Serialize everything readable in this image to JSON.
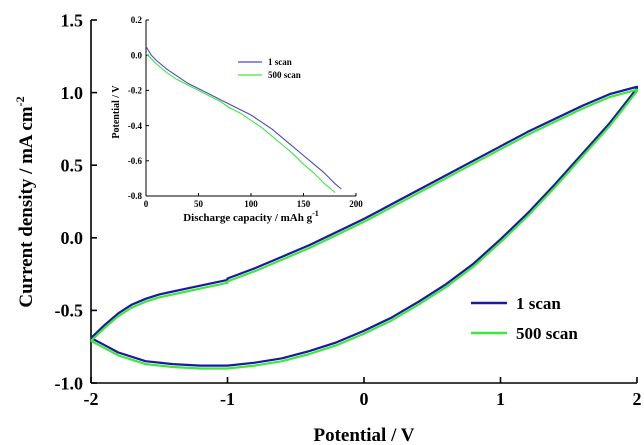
{
  "chart_data": [
    {
      "type": "line",
      "xlabel": "Potential / V",
      "ylabel_main": "Current density / mA cm",
      "ylabel_sup": "-2",
      "xlim": [
        -2,
        2
      ],
      "ylim": [
        -1.0,
        1.5
      ],
      "x_ticks": [
        "-2",
        "-1",
        "0",
        "1",
        "2"
      ],
      "y_ticks": [
        "-1.0",
        "-0.5",
        "0.0",
        "0.5",
        "1.0",
        "1.5"
      ],
      "legend_position": "bottom-right",
      "series": [
        {
          "name": "1 scan",
          "color": "#1a1aa0",
          "x": [
            -2.0,
            -1.9,
            -1.8,
            -1.7,
            -1.6,
            -1.5,
            -1.4,
            -1.3,
            -1.2,
            -1.1,
            -1.0,
            -1.0,
            -0.8,
            -0.6,
            -0.4,
            -0.2,
            0.0,
            0.2,
            0.4,
            0.6,
            0.8,
            1.0,
            1.2,
            1.4,
            1.6,
            1.8,
            2.0,
            2.0,
            1.9,
            1.8,
            1.6,
            1.4,
            1.2,
            1.0,
            0.8,
            0.6,
            0.4,
            0.2,
            0.0,
            -0.2,
            -0.4,
            -0.6,
            -0.8,
            -1.0,
            -1.2,
            -1.4,
            -1.6,
            -1.8,
            -1.9,
            -2.0
          ],
          "y": [
            -0.69,
            -0.6,
            -0.52,
            -0.46,
            -0.42,
            -0.39,
            -0.37,
            -0.35,
            -0.33,
            -0.31,
            -0.29,
            -0.28,
            -0.21,
            -0.13,
            -0.05,
            0.04,
            0.13,
            0.23,
            0.33,
            0.43,
            0.53,
            0.63,
            0.73,
            0.82,
            0.91,
            0.99,
            1.04,
            1.03,
            0.91,
            0.79,
            0.58,
            0.37,
            0.17,
            -0.01,
            -0.18,
            -0.32,
            -0.44,
            -0.55,
            -0.64,
            -0.72,
            -0.78,
            -0.83,
            -0.86,
            -0.88,
            -0.88,
            -0.87,
            -0.85,
            -0.79,
            -0.74,
            -0.69
          ]
        },
        {
          "name": "500 scan",
          "color": "#3ee83e",
          "x": [
            -2.0,
            -1.9,
            -1.8,
            -1.7,
            -1.6,
            -1.5,
            -1.4,
            -1.3,
            -1.2,
            -1.1,
            -1.0,
            -1.0,
            -0.8,
            -0.6,
            -0.4,
            -0.2,
            0.0,
            0.2,
            0.4,
            0.6,
            0.8,
            1.0,
            1.2,
            1.4,
            1.6,
            1.8,
            2.0,
            2.0,
            1.9,
            1.8,
            1.6,
            1.4,
            1.2,
            1.0,
            0.8,
            0.6,
            0.4,
            0.2,
            0.0,
            -0.2,
            -0.4,
            -0.6,
            -0.8,
            -1.0,
            -1.2,
            -1.4,
            -1.6,
            -1.8,
            -1.9,
            -2.0
          ],
          "y": [
            -0.71,
            -0.62,
            -0.54,
            -0.48,
            -0.44,
            -0.41,
            -0.39,
            -0.37,
            -0.35,
            -0.33,
            -0.31,
            -0.3,
            -0.23,
            -0.15,
            -0.07,
            0.02,
            0.11,
            0.21,
            0.31,
            0.41,
            0.51,
            0.61,
            0.71,
            0.8,
            0.89,
            0.97,
            1.02,
            1.01,
            0.89,
            0.77,
            0.56,
            0.35,
            0.15,
            -0.03,
            -0.2,
            -0.34,
            -0.46,
            -0.57,
            -0.66,
            -0.74,
            -0.8,
            -0.85,
            -0.88,
            -0.9,
            -0.9,
            -0.89,
            -0.87,
            -0.81,
            -0.76,
            -0.71
          ]
        }
      ]
    },
    {
      "type": "line",
      "xlabel_main": "Discharge capacity / mAh g",
      "xlabel_sup": "-1",
      "ylabel": "Potential / V",
      "xlim": [
        0,
        200
      ],
      "ylim": [
        -0.8,
        0.2
      ],
      "x_ticks": [
        "0",
        "50",
        "100",
        "150",
        "200"
      ],
      "y_ticks": [
        "-0.8",
        "-0.6",
        "-0.4",
        "-0.2",
        "0.0",
        "0.2"
      ],
      "legend_position": "top-right",
      "series": [
        {
          "name": "1 scan",
          "color": "#4a4ac0",
          "x": [
            0,
            5,
            10,
            20,
            30,
            40,
            50,
            60,
            70,
            80,
            90,
            100,
            110,
            120,
            130,
            140,
            150,
            160,
            170,
            180,
            186
          ],
          "y": [
            0.05,
            0.0,
            -0.03,
            -0.08,
            -0.12,
            -0.16,
            -0.19,
            -0.22,
            -0.25,
            -0.28,
            -0.31,
            -0.34,
            -0.38,
            -0.42,
            -0.47,
            -0.52,
            -0.57,
            -0.62,
            -0.67,
            -0.73,
            -0.76
          ]
        },
        {
          "name": "500 scan",
          "color": "#3ee83e",
          "x": [
            0,
            5,
            10,
            20,
            30,
            40,
            50,
            60,
            70,
            80,
            90,
            100,
            110,
            120,
            130,
            140,
            150,
            160,
            170,
            180
          ],
          "y": [
            0.01,
            -0.02,
            -0.05,
            -0.1,
            -0.14,
            -0.17,
            -0.2,
            -0.23,
            -0.26,
            -0.3,
            -0.33,
            -0.37,
            -0.41,
            -0.46,
            -0.51,
            -0.56,
            -0.62,
            -0.67,
            -0.73,
            -0.78
          ]
        }
      ]
    }
  ]
}
